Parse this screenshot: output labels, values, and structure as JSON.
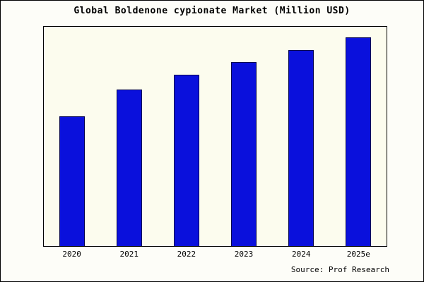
{
  "title": "Global Boldenone cypionate Market (Million USD)",
  "source": "Source: Prof Research",
  "chart_data": {
    "type": "bar",
    "title": "Global Boldenone cypionate Market (Million USD)",
    "categories": [
      "2020",
      "2021",
      "2022",
      "2023",
      "2024",
      "2025e"
    ],
    "values": [
      62,
      75,
      82,
      88,
      94,
      100
    ],
    "xlabel": "",
    "ylabel": "",
    "ylim": [
      0,
      105
    ],
    "grid": false,
    "legend": false,
    "bar_color": "#0a10dc",
    "bar_border_color": "#00004d",
    "plot_background": "#fcfcee",
    "note": "Source: Prof Research"
  }
}
